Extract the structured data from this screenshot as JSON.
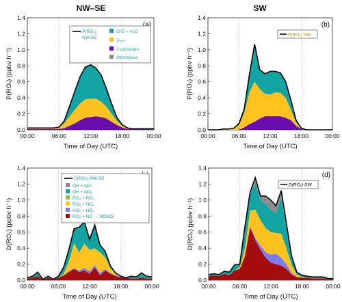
{
  "headers": {
    "left": "NW–SE",
    "right": "SW"
  },
  "colors": {
    "o1d": "#12a3a3",
    "hono": "#ffc21e",
    "carbonyls": "#6a0dad",
    "ozonolysis": "#8c8c8c",
    "ro_no": "#8c8c8c",
    "oh_no2": "#12a3a3",
    "ro2_ro2": "#8bc34a",
    "ro2_ho2": "#ffc21e",
    "ho2_ho2": "#7b7bf0",
    "ro2_rono2": "#a50d0d",
    "total": "#000000"
  },
  "chart_data": [
    {
      "panel": "(a)",
      "type": "area",
      "stacked": true,
      "xlabel": "Time of Day (UTC)",
      "ylabel": "P(ROₓ) (ppbv h⁻¹)",
      "xlim": [
        0,
        24
      ],
      "ylim": [
        0,
        1.4
      ],
      "xticks": [
        "00:00",
        "06:00",
        "12:00",
        "18:00",
        "00:00"
      ],
      "yticks": [
        "0.0",
        "0.2",
        "0.4",
        "0.6",
        "0.8",
        "1.0",
        "1.2",
        "1.4"
      ],
      "x": [
        0,
        1,
        2,
        3,
        4,
        5,
        6,
        7,
        8,
        9,
        10,
        11,
        12,
        13,
        14,
        15,
        16,
        17,
        18,
        19,
        20,
        21,
        22,
        23,
        24
      ],
      "series": [
        {
          "name": "J carbonyls",
          "key": "carbonyls",
          "values": [
            0.01,
            0.01,
            0.01,
            0.01,
            0.01,
            0.01,
            0.01,
            0.02,
            0.05,
            0.08,
            0.12,
            0.15,
            0.16,
            0.17,
            0.16,
            0.14,
            0.1,
            0.06,
            0.03,
            0.01,
            0.01,
            0.01,
            0.01,
            0.01,
            0.01
          ]
        },
        {
          "name": "J HONO",
          "key": "hono",
          "values": [
            0.01,
            0.01,
            0.01,
            0.01,
            0.01,
            0.01,
            0.02,
            0.06,
            0.12,
            0.17,
            0.21,
            0.23,
            0.23,
            0.22,
            0.19,
            0.15,
            0.1,
            0.05,
            0.02,
            0.01,
            0.0,
            0.0,
            0.0,
            0.0,
            0.0
          ]
        },
        {
          "name": "O1D + H2O",
          "key": "o1d",
          "values": [
            0.0,
            0.0,
            0.0,
            0.0,
            0.0,
            0.0,
            0.0,
            0.03,
            0.12,
            0.23,
            0.33,
            0.4,
            0.42,
            0.38,
            0.33,
            0.22,
            0.12,
            0.04,
            0.01,
            0.0,
            0.0,
            0.0,
            0.0,
            0.0,
            0.0
          ]
        },
        {
          "name": "Ozonolysis",
          "key": "ozonolysis",
          "values": [
            0.003,
            0.003,
            0.003,
            0.003,
            0.003,
            0.003,
            0.003,
            0.003,
            0.003,
            0.003,
            0.003,
            0.003,
            0.003,
            0.003,
            0.003,
            0.003,
            0.003,
            0.003,
            0.003,
            0.003,
            0.003,
            0.003,
            0.003,
            0.003,
            0.003
          ]
        }
      ],
      "legend": {
        "total": "P(ROₓ)",
        "total_sub": "NW-SE",
        "o1d": "O¹D + H₂O",
        "hono": "Jₕₒₙₒ",
        "carbonyls": "J carbonyls",
        "ozonolysis": "Ozonolysis"
      }
    },
    {
      "panel": "(b)",
      "type": "area",
      "stacked": true,
      "xlabel": "Time of Day (UTC)",
      "ylabel": "P(ROₓ) (ppbv h⁻¹)",
      "xlim": [
        0,
        24
      ],
      "ylim": [
        0,
        1.4
      ],
      "xticks": [
        "00:00",
        "06:00",
        "12:00",
        "18:00",
        "00:00"
      ],
      "yticks": [
        "0.0",
        "0.2",
        "0.4",
        "0.6",
        "0.8",
        "1.0",
        "1.2",
        "1.4"
      ],
      "x": [
        0,
        1,
        2,
        3,
        4,
        5,
        6,
        7,
        8,
        9,
        10,
        11,
        12,
        13,
        14,
        15,
        16,
        17,
        18,
        19,
        20,
        21,
        22,
        23,
        24
      ],
      "series": [
        {
          "name": "J carbonyls",
          "key": "carbonyls",
          "values": [
            0.0,
            0.0,
            0.0,
            0.0,
            0.0,
            0.0,
            0.0,
            0.03,
            0.07,
            0.1,
            0.14,
            0.17,
            0.17,
            0.17,
            0.17,
            0.15,
            0.12,
            0.05,
            0.01,
            0.0,
            0.0,
            0.0,
            0.0,
            0.0,
            0.0
          ]
        },
        {
          "name": "J HONO",
          "key": "hono",
          "values": [
            0.0,
            0.0,
            0.0,
            0.01,
            0.01,
            0.02,
            0.06,
            0.18,
            0.4,
            0.5,
            0.37,
            0.28,
            0.27,
            0.3,
            0.29,
            0.25,
            0.13,
            0.04,
            0.01,
            0.0,
            0.0,
            0.0,
            0.0,
            0.0,
            0.0
          ]
        },
        {
          "name": "O1D + H2O",
          "key": "o1d",
          "values": [
            0.0,
            0.0,
            0.0,
            0.0,
            0.0,
            0.0,
            0.02,
            0.05,
            0.22,
            0.47,
            0.24,
            0.25,
            0.29,
            0.26,
            0.25,
            0.2,
            0.12,
            0.03,
            0.0,
            0.0,
            0.0,
            0.0,
            0.0,
            0.0,
            0.0
          ]
        }
      ],
      "legend": {
        "total": "P(ROₓ) SW"
      }
    },
    {
      "panel": "(c)",
      "type": "area",
      "stacked": true,
      "xlabel": "Time of Day (UTC)",
      "ylabel": "D(ROₓ) (ppbv h⁻¹)",
      "xlim": [
        0,
        24
      ],
      "ylim": [
        0,
        1.4
      ],
      "xticks": [
        "00:00",
        "06:00",
        "12:00",
        "18:00",
        "00:00"
      ],
      "yticks": [
        "0.0",
        "0.2",
        "0.4",
        "0.6",
        "0.8",
        "1.0",
        "1.2",
        "1.4"
      ],
      "x": [
        0,
        1,
        2,
        3,
        4,
        5,
        6,
        7,
        8,
        9,
        10,
        11,
        12,
        13,
        14,
        15,
        16,
        17,
        18,
        19,
        20,
        21,
        22,
        23,
        24
      ],
      "series": [
        {
          "name": "RO2 + NO → RONO2",
          "key": "ro2_rono2",
          "values": [
            0.02,
            0.03,
            0.05,
            0.01,
            0.03,
            0.01,
            0.03,
            0.06,
            0.1,
            0.14,
            0.1,
            0.12,
            0.08,
            0.16,
            0.06,
            0.12,
            0.08,
            0.05,
            0.04,
            0.03,
            0.02,
            0.02,
            0.03,
            0.02,
            0.02
          ]
        },
        {
          "name": "HO2 + HO2",
          "key": "ho2_ho2",
          "values": [
            0.0,
            0.0,
            0.0,
            0.0,
            0.0,
            0.0,
            0.0,
            0.0,
            0.01,
            0.01,
            0.02,
            0.03,
            0.03,
            0.03,
            0.03,
            0.02,
            0.01,
            0.01,
            0.0,
            0.0,
            0.0,
            0.0,
            0.0,
            0.0,
            0.0
          ]
        },
        {
          "name": "RO2 + HO2",
          "key": "ro2_ho2",
          "values": [
            0.0,
            0.0,
            0.0,
            0.0,
            0.0,
            0.0,
            0.0,
            0.02,
            0.12,
            0.3,
            0.22,
            0.3,
            0.26,
            0.2,
            0.25,
            0.14,
            0.06,
            0.02,
            0.0,
            0.0,
            0.0,
            0.0,
            0.0,
            0.0,
            0.0
          ]
        },
        {
          "name": "RO2 + RO2",
          "key": "ro2_ro2",
          "values": [
            0.0,
            0.0,
            0.0,
            0.0,
            0.0,
            0.0,
            0.0,
            0.0,
            0.0,
            0.01,
            0.01,
            0.01,
            0.01,
            0.01,
            0.01,
            0.01,
            0.0,
            0.0,
            0.0,
            0.0,
            0.0,
            0.0,
            0.0,
            0.0,
            0.0
          ]
        },
        {
          "name": "OH + NO2",
          "key": "oh_no2",
          "values": [
            0.01,
            0.02,
            0.05,
            0.0,
            0.02,
            0.0,
            0.02,
            0.08,
            0.14,
            0.17,
            0.3,
            0.26,
            0.12,
            0.28,
            0.08,
            0.06,
            0.03,
            0.01,
            0.01,
            0.0,
            0.03,
            0.02,
            0.06,
            0.03,
            0.02
          ]
        },
        {
          "name": "OH + NO",
          "key": "ro_no",
          "values": [
            0.0,
            0.0,
            0.0,
            0.0,
            0.0,
            0.0,
            0.0,
            0.0,
            0.01,
            0.01,
            0.01,
            0.01,
            0.01,
            0.01,
            0.01,
            0.01,
            0.0,
            0.0,
            0.0,
            0.0,
            0.0,
            0.0,
            0.0,
            0.0,
            0.0
          ]
        }
      ],
      "legend": {
        "total": "D(ROₓ) NW-SE",
        "oh_no": "OH + NO",
        "oh_no2": "OH + NO₂",
        "ro2_ro2": "RO₂ + RO₂",
        "ro2_ho2": "RO₂ + HO₂",
        "ho2_ho2": "HO₂ + HO₂",
        "ro2_rono2": "RO₂ + NO → RONO₂"
      }
    },
    {
      "panel": "(d)",
      "type": "area",
      "stacked": true,
      "xlabel": "Time of Day (UTC)",
      "ylabel": "D(ROₓ) (ppbv h⁻¹)",
      "xlim": [
        0,
        24
      ],
      "ylim": [
        0,
        1.4
      ],
      "xticks": [
        "00:00",
        "06:00",
        "12:00",
        "18:00",
        "00:00"
      ],
      "yticks": [
        "0.0",
        "0.2",
        "0.4",
        "0.6",
        "0.8",
        "1.0",
        "1.2",
        "1.4"
      ],
      "x": [
        0,
        1,
        2,
        3,
        4,
        5,
        6,
        7,
        8,
        9,
        10,
        11,
        12,
        13,
        14,
        15,
        16,
        17,
        18,
        19,
        20,
        21,
        22,
        23,
        24
      ],
      "series": [
        {
          "name": "RO2 + NO → RONO2",
          "key": "ro2_rono2",
          "values": [
            0.05,
            0.06,
            0.05,
            0.08,
            0.06,
            0.12,
            0.14,
            0.3,
            0.66,
            0.5,
            0.38,
            0.28,
            0.22,
            0.2,
            0.18,
            0.14,
            0.07,
            0.04,
            0.03,
            0.03,
            0.02,
            0.02,
            0.02,
            0.01,
            0.01
          ]
        },
        {
          "name": "HO2 + HO2",
          "key": "ho2_ho2",
          "values": [
            0.0,
            0.0,
            0.0,
            0.0,
            0.0,
            0.0,
            0.0,
            0.0,
            0.01,
            0.03,
            0.05,
            0.07,
            0.1,
            0.13,
            0.1,
            0.06,
            0.02,
            0.0,
            0.0,
            0.0,
            0.0,
            0.0,
            0.0,
            0.0,
            0.0
          ]
        },
        {
          "name": "RO2 + HO2",
          "key": "ro2_ho2",
          "values": [
            0.0,
            0.0,
            0.0,
            0.0,
            0.0,
            0.0,
            0.02,
            0.1,
            0.2,
            0.35,
            0.32,
            0.3,
            0.28,
            0.26,
            0.3,
            0.2,
            0.1,
            0.03,
            0.01,
            0.0,
            0.0,
            0.0,
            0.0,
            0.0,
            0.0
          ]
        },
        {
          "name": "RO2 + RO2",
          "key": "ro2_ro2",
          "values": [
            0.0,
            0.0,
            0.0,
            0.0,
            0.0,
            0.0,
            0.0,
            0.0,
            0.0,
            0.0,
            0.0,
            0.0,
            0.0,
            0.0,
            0.0,
            0.0,
            0.0,
            0.0,
            0.0,
            0.0,
            0.0,
            0.0,
            0.0,
            0.0,
            0.0
          ]
        },
        {
          "name": "OH + NO2",
          "key": "oh_no2",
          "values": [
            0.02,
            0.02,
            0.02,
            0.03,
            0.04,
            0.07,
            0.04,
            0.26,
            0.2,
            0.33,
            0.25,
            0.3,
            0.28,
            0.24,
            0.44,
            0.25,
            0.09,
            0.03,
            0.02,
            0.02,
            0.02,
            0.02,
            0.02,
            0.01,
            0.01
          ]
        },
        {
          "name": "OH + NO",
          "key": "ro_no",
          "values": [
            0.0,
            0.0,
            0.0,
            0.0,
            0.0,
            0.0,
            0.0,
            0.01,
            0.03,
            0.07,
            0.05,
            0.1,
            0.12,
            0.1,
            0.1,
            0.06,
            0.02,
            0.0,
            0.0,
            0.0,
            0.0,
            0.0,
            0.0,
            0.0,
            0.0
          ]
        }
      ],
      "legend": {
        "total": "D(ROₓ) SW"
      }
    }
  ]
}
